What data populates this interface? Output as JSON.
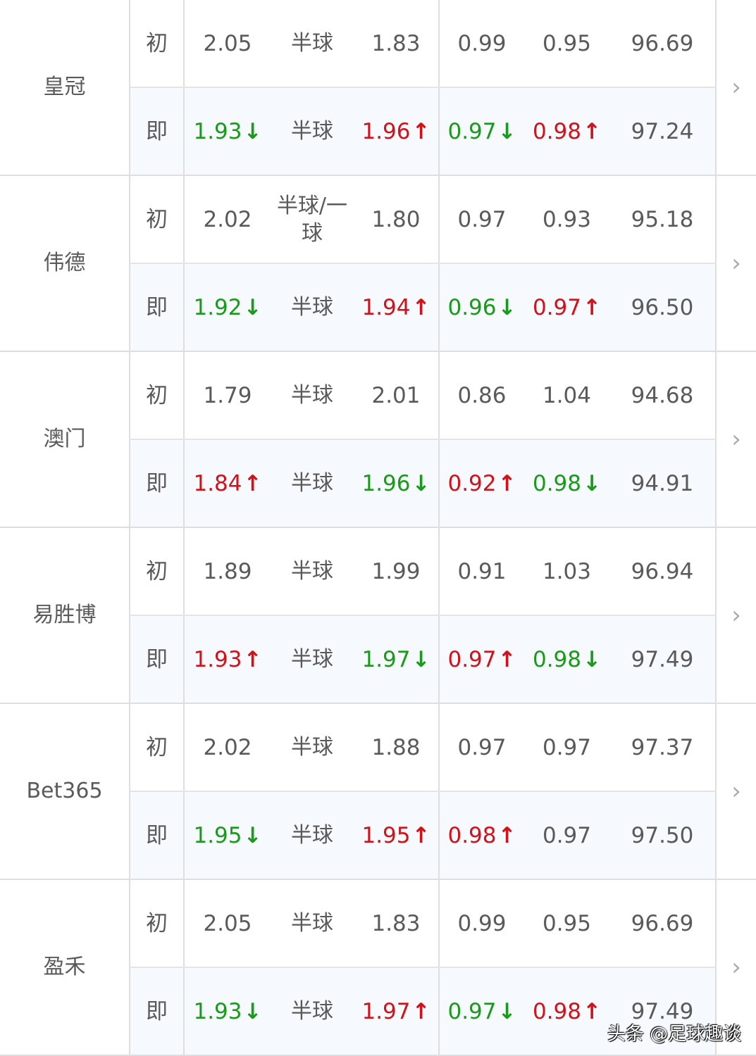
{
  "labels": {
    "initial": "初",
    "live": "即"
  },
  "trend_colors": {
    "up": "#d0121b",
    "down": "#1a9a1a"
  },
  "companies": [
    {
      "name": "皇冠",
      "initial": [
        {
          "v": "2.05",
          "t": ""
        },
        {
          "v": "半球",
          "t": ""
        },
        {
          "v": "1.83",
          "t": ""
        },
        {
          "v": "0.99",
          "t": ""
        },
        {
          "v": "0.95",
          "t": ""
        },
        {
          "v": "96.69",
          "t": ""
        }
      ],
      "live": [
        {
          "v": "1.93",
          "t": "down"
        },
        {
          "v": "半球",
          "t": ""
        },
        {
          "v": "1.96",
          "t": "up"
        },
        {
          "v": "0.97",
          "t": "down"
        },
        {
          "v": "0.98",
          "t": "up"
        },
        {
          "v": "97.24",
          "t": ""
        }
      ]
    },
    {
      "name": "伟德",
      "initial": [
        {
          "v": "2.02",
          "t": ""
        },
        {
          "v": "半球/一球",
          "t": ""
        },
        {
          "v": "1.80",
          "t": ""
        },
        {
          "v": "0.97",
          "t": ""
        },
        {
          "v": "0.93",
          "t": ""
        },
        {
          "v": "95.18",
          "t": ""
        }
      ],
      "live": [
        {
          "v": "1.92",
          "t": "down"
        },
        {
          "v": "半球",
          "t": ""
        },
        {
          "v": "1.94",
          "t": "up"
        },
        {
          "v": "0.96",
          "t": "down"
        },
        {
          "v": "0.97",
          "t": "up"
        },
        {
          "v": "96.50",
          "t": ""
        }
      ]
    },
    {
      "name": "澳门",
      "initial": [
        {
          "v": "1.79",
          "t": ""
        },
        {
          "v": "半球",
          "t": ""
        },
        {
          "v": "2.01",
          "t": ""
        },
        {
          "v": "0.86",
          "t": ""
        },
        {
          "v": "1.04",
          "t": ""
        },
        {
          "v": "94.68",
          "t": ""
        }
      ],
      "live": [
        {
          "v": "1.84",
          "t": "up"
        },
        {
          "v": "半球",
          "t": ""
        },
        {
          "v": "1.96",
          "t": "down"
        },
        {
          "v": "0.92",
          "t": "up"
        },
        {
          "v": "0.98",
          "t": "down"
        },
        {
          "v": "94.91",
          "t": ""
        }
      ]
    },
    {
      "name": "易胜博",
      "initial": [
        {
          "v": "1.89",
          "t": ""
        },
        {
          "v": "半球",
          "t": ""
        },
        {
          "v": "1.99",
          "t": ""
        },
        {
          "v": "0.91",
          "t": ""
        },
        {
          "v": "1.03",
          "t": ""
        },
        {
          "v": "96.94",
          "t": ""
        }
      ],
      "live": [
        {
          "v": "1.93",
          "t": "up"
        },
        {
          "v": "半球",
          "t": ""
        },
        {
          "v": "1.97",
          "t": "down"
        },
        {
          "v": "0.97",
          "t": "up"
        },
        {
          "v": "0.98",
          "t": "down"
        },
        {
          "v": "97.49",
          "t": ""
        }
      ]
    },
    {
      "name": "Bet365",
      "initial": [
        {
          "v": "2.02",
          "t": ""
        },
        {
          "v": "半球",
          "t": ""
        },
        {
          "v": "1.88",
          "t": ""
        },
        {
          "v": "0.97",
          "t": ""
        },
        {
          "v": "0.97",
          "t": ""
        },
        {
          "v": "97.37",
          "t": ""
        }
      ],
      "live": [
        {
          "v": "1.95",
          "t": "down"
        },
        {
          "v": "半球",
          "t": ""
        },
        {
          "v": "1.95",
          "t": "up"
        },
        {
          "v": "0.98",
          "t": "up"
        },
        {
          "v": "0.97",
          "t": ""
        },
        {
          "v": "97.50",
          "t": ""
        }
      ]
    },
    {
      "name": "盈禾",
      "initial": [
        {
          "v": "2.05",
          "t": ""
        },
        {
          "v": "半球",
          "t": ""
        },
        {
          "v": "1.83",
          "t": ""
        },
        {
          "v": "0.99",
          "t": ""
        },
        {
          "v": "0.95",
          "t": ""
        },
        {
          "v": "96.69",
          "t": ""
        }
      ],
      "live": [
        {
          "v": "1.93",
          "t": "down"
        },
        {
          "v": "半球",
          "t": ""
        },
        {
          "v": "1.97",
          "t": "up"
        },
        {
          "v": "0.97",
          "t": "down"
        },
        {
          "v": "0.98",
          "t": "up"
        },
        {
          "v": "97.49",
          "t": ""
        }
      ]
    }
  ],
  "watermark": "头条 @足球趣谈"
}
